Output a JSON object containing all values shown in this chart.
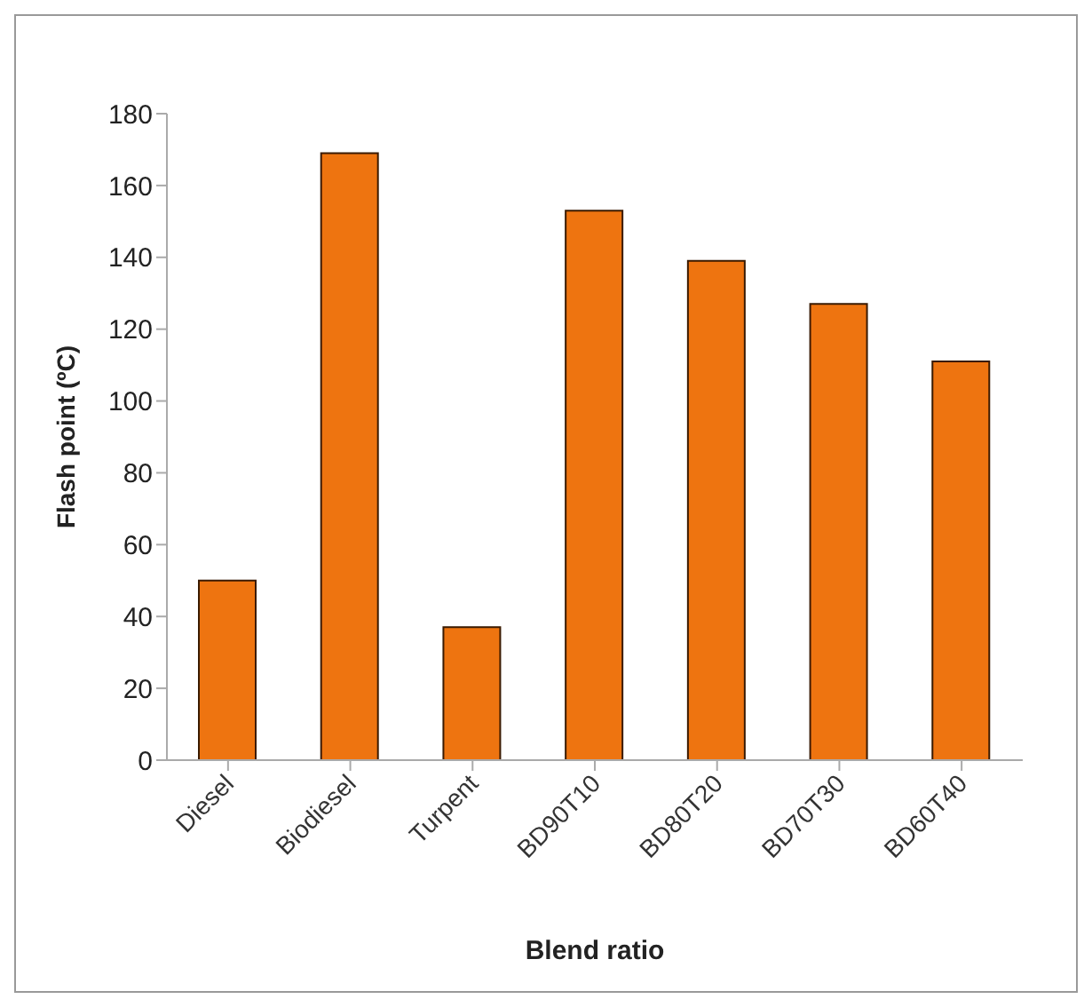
{
  "chart_data": {
    "type": "bar",
    "xlabel": "Blend ratio",
    "ylabel": "Flash point  (ºC)",
    "categories": [
      "Diesel",
      "Biodiesel",
      "Turpent",
      "BD90T10",
      "BD80T20",
      "BD70T30",
      "BD60T40"
    ],
    "values": [
      50,
      169,
      37,
      153,
      139,
      127,
      111
    ],
    "color": "#ee7410",
    "ylim": [
      0,
      180
    ],
    "yticks": [
      0,
      20,
      40,
      60,
      80,
      100,
      120,
      140,
      160,
      180
    ],
    "grid": false,
    "legend": false
  }
}
